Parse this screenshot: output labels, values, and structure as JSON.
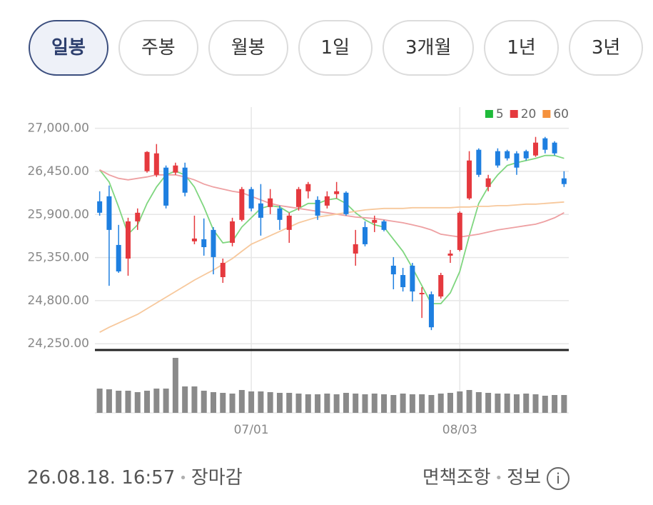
{
  "tabs": [
    "일봉",
    "주봉",
    "월봉",
    "1일",
    "3개월",
    "1년",
    "3년"
  ],
  "selected_tab": 0,
  "chart_data": {
    "type": "candlestick",
    "categories": [
      null,
      null,
      null,
      null,
      null,
      null,
      null,
      null,
      null,
      null,
      null,
      null,
      null,
      null,
      null,
      null,
      "07/01",
      null,
      null,
      null,
      null,
      null,
      null,
      null,
      null,
      null,
      null,
      null,
      null,
      null,
      null,
      null,
      null,
      null,
      null,
      null,
      null,
      null,
      "08/03",
      null,
      null,
      null,
      null,
      null,
      null,
      null,
      null,
      null,
      null,
      null
    ],
    "open": [
      26068,
      26132,
      25511,
      25337,
      25812,
      26452,
      26406,
      26498,
      26434,
      26498,
      25557,
      25584,
      25703,
      25100,
      25538,
      25831,
      26224,
      26041,
      25995,
      25977,
      25703,
      25995,
      26196,
      26086,
      26013,
      26160,
      26178,
      25401,
      25739,
      25794,
      25812,
      25246,
      25127,
      25246,
      24881,
      24881,
      24853,
      25374,
      25447,
      26105,
      26726,
      26251,
      26708,
      26708,
      26680,
      26708,
      26653,
      26872,
      26817,
      26361
    ],
    "high": [
      26196,
      26269,
      25767,
      25858,
      25977,
      26708,
      26799,
      26525,
      26561,
      26561,
      25885,
      25849,
      25739,
      25337,
      25858,
      26251,
      26251,
      26288,
      26224,
      26013,
      25922,
      26251,
      26315,
      26132,
      26196,
      26315,
      26196,
      25703,
      25812,
      25885,
      25831,
      25356,
      25218,
      25282,
      24972,
      24917,
      25155,
      25447,
      25940,
      26708,
      26744,
      26406,
      26744,
      26726,
      26708,
      26726,
      26890,
      26890,
      26835,
      26452
    ],
    "low": [
      25885,
      24990,
      25155,
      25118,
      25703,
      26434,
      26379,
      25977,
      26406,
      26132,
      25520,
      25374,
      25136,
      25027,
      25493,
      25812,
      25940,
      25630,
      25904,
      25703,
      25538,
      25949,
      26105,
      25831,
      25977,
      26105,
      25885,
      25246,
      25493,
      25675,
      25685,
      24945,
      24917,
      24789,
      24579,
      24424,
      24826,
      25282,
      25429,
      26086,
      26379,
      26196,
      26498,
      26589,
      26406,
      26589,
      26635,
      26680,
      26653,
      26251
    ],
    "close": [
      25922,
      25703,
      25173,
      25812,
      25922,
      26698,
      26680,
      26013,
      26525,
      26178,
      25593,
      25483,
      25356,
      25282,
      25812,
      26224,
      25977,
      25858,
      26105,
      25831,
      25885,
      26224,
      26288,
      25885,
      26132,
      26196,
      25904,
      25520,
      25520,
      25831,
      25703,
      25136,
      24972,
      24917,
      24899,
      24460,
      25127,
      25401,
      25922,
      26589,
      26406,
      26361,
      26525,
      26616,
      26498,
      26616,
      26817,
      26726,
      26680,
      26288
    ],
    "up_color": "#e5393e",
    "down_color": "#1e7fe0",
    "series": [
      {
        "name": "5",
        "color": "#7fd67f",
        "legend_color": "#1fba3a",
        "values": [
          26470,
          26315,
          25995,
          25648,
          25767,
          26041,
          26251,
          26406,
          26452,
          26406,
          26251,
          25995,
          25703,
          25538,
          25557,
          25739,
          25858,
          25977,
          26013,
          25995,
          25922,
          25977,
          26041,
          26041,
          26086,
          26105,
          26041,
          25922,
          25831,
          25767,
          25739,
          25584,
          25429,
          25218,
          24990,
          24762,
          24762,
          24899,
          25173,
          25630,
          26041,
          26251,
          26406,
          26525,
          26561,
          26589,
          26616,
          26653,
          26653,
          26616
        ]
      },
      {
        "name": "20",
        "color": "#eea0a2",
        "legend_color": "#e5393e",
        "values": [
          26470,
          26406,
          26361,
          26342,
          26361,
          26379,
          26406,
          26406,
          26406,
          26379,
          26342,
          26288,
          26251,
          26224,
          26196,
          26178,
          26132,
          26086,
          26041,
          26013,
          25995,
          25977,
          25958,
          25940,
          25922,
          25904,
          25885,
          25867,
          25858,
          25849,
          25831,
          25812,
          25794,
          25767,
          25739,
          25703,
          25648,
          25630,
          25612,
          25630,
          25648,
          25675,
          25703,
          25721,
          25739,
          25758,
          25776,
          25812,
          25858,
          25922
        ]
      },
      {
        "name": "60",
        "color": "#f7c89c",
        "legend_color": "#f5913c",
        "values": [
          24396,
          24460,
          24515,
          24570,
          24625,
          24698,
          24771,
          24844,
          24917,
          24990,
          25063,
          25127,
          25191,
          25264,
          25337,
          25429,
          25520,
          25575,
          25630,
          25684,
          25739,
          25794,
          25831,
          25867,
          25885,
          25904,
          25922,
          25940,
          25958,
          25968,
          25977,
          25977,
          25977,
          25986,
          25986,
          25986,
          25986,
          25986,
          25995,
          25995,
          26004,
          26004,
          26013,
          26013,
          26022,
          26032,
          26032,
          26041,
          26050,
          26059
        ]
      }
    ],
    "volume": [
      34,
      33,
      31,
      31,
      29,
      31,
      34,
      34,
      77,
      37,
      37,
      31,
      29,
      28,
      27,
      32,
      30,
      30,
      29,
      28,
      28,
      27,
      26,
      26,
      27,
      26,
      28,
      27,
      26,
      27,
      26,
      25,
      27,
      26,
      26,
      25,
      27,
      28,
      30,
      32,
      29,
      28,
      27,
      27,
      26,
      27,
      26,
      24,
      25,
      25
    ],
    "volume_color": "#8a8a8a",
    "ylim": [
      24170,
      27270
    ],
    "yticks": [
      {
        "value": 27000,
        "label": "27,000.00"
      },
      {
        "value": 26450,
        "label": "26,450.00"
      },
      {
        "value": 25900,
        "label": "25,900.00"
      },
      {
        "value": 25350,
        "label": "25,350.00"
      },
      {
        "value": 24800,
        "label": "24,800.00"
      },
      {
        "value": 24250,
        "label": "24,250.00"
      }
    ],
    "grid": true
  },
  "footer": {
    "timestamp": "26.08.18. 16:57",
    "separator": "•",
    "status": "장마감",
    "disclaimer": "면책조항",
    "info": "정보",
    "info_icon": "i"
  }
}
